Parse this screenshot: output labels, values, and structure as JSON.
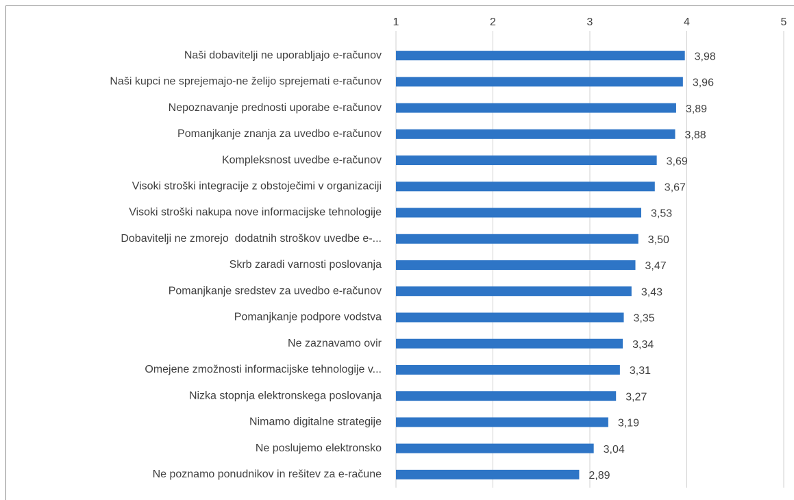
{
  "chart_data": {
    "type": "bar",
    "orientation": "horizontal",
    "categories": [
      "Naši dobavitelji ne uporabljajo e-računov",
      "Naši kupci ne sprejemajo-ne želijo sprejemati e-računov",
      "Nepoznavanje prednosti uporabe e-računov",
      "Pomanjkanje znanja za uvedbo e-računov",
      "Kompleksnost uvedbe e-računov",
      "Visoki stroški integracije z obstoječimi v organizaciji",
      "Visoki stroški nakupa nove informacijske tehnologije",
      "Dobavitelji ne zmorejo  dodatnih stroškov uvedbe e-...",
      "Skrb zaradi varnosti poslovanja",
      "Pomanjkanje sredstev za uvedbo e-računov",
      "Pomanjkanje podpore vodstva",
      "Ne zaznavamo ovir",
      "Omejene zmožnosti informacijske tehnologije v...",
      "Nizka stopnja elektronskega poslovanja",
      "Nimamo digitalne strategije",
      "Ne poslujemo elektronsko",
      "Ne poznamo ponudnikov in rešitev za e-račune"
    ],
    "values": [
      3.98,
      3.96,
      3.89,
      3.88,
      3.69,
      3.67,
      3.53,
      3.5,
      3.47,
      3.43,
      3.35,
      3.34,
      3.31,
      3.27,
      3.19,
      3.04,
      2.89
    ],
    "value_labels": [
      "3,98",
      "3,96",
      "3,89",
      "3,88",
      "3,69",
      "3,67",
      "3,53",
      "3,50",
      "3,47",
      "3,43",
      "3,35",
      "3,34",
      "3,31",
      "3,27",
      "3,19",
      "3,04",
      "2,89"
    ],
    "color": "#2e75c6",
    "xlim": [
      1,
      5
    ],
    "xticks": [
      1,
      2,
      3,
      4,
      5
    ],
    "grid": true
  }
}
